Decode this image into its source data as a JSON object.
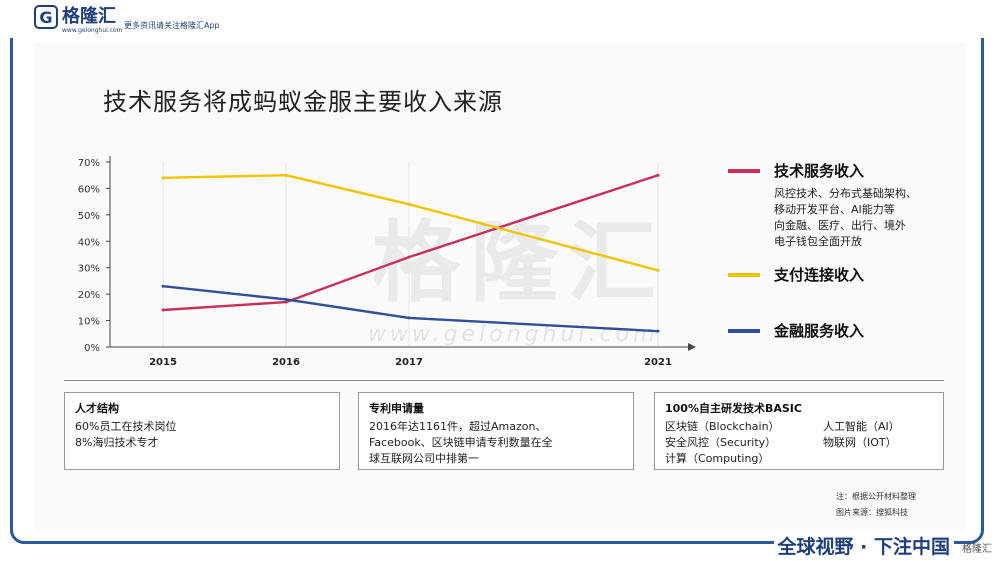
{
  "brand": {
    "mark": "G",
    "name": "格隆汇",
    "url": "www.gelonghui.com",
    "slogan": "更多资讯请关注格隆汇App"
  },
  "slide": {
    "title": "技术服务将成蚂蚁金服主要收入来源",
    "footer": "全球视野 · 下注中国",
    "footer_logo": "格隆汇",
    "notes": [
      "注：根据公开材料整理",
      "图片来源：搜狐科技"
    ],
    "watermark": "格隆汇",
    "watermark_url": "www.gelonghui.com"
  },
  "chart_data": {
    "type": "line",
    "categories": [
      "2015",
      "2016",
      "2017",
      "2021"
    ],
    "y_ticks": [
      "0%",
      "10%",
      "20%",
      "30%",
      "40%",
      "50%",
      "60%",
      "70%"
    ],
    "ylim": [
      0,
      70
    ],
    "series": [
      {
        "name": "技术服务收入",
        "color": "#c8305a",
        "values": [
          14,
          17,
          34,
          65
        ],
        "desc": [
          "风控技术、分布式基础架构、",
          "移动开发平台、AI能力等",
          "向金融、医疗、出行、境外",
          "电子钱包全面开放"
        ]
      },
      {
        "name": "支付连接收入",
        "color": "#f2c400",
        "values": [
          64,
          65,
          54,
          29
        ],
        "desc": []
      },
      {
        "name": "金融服务收入",
        "color": "#2f4f9a",
        "values": [
          23,
          18,
          11,
          6
        ],
        "desc": []
      }
    ]
  },
  "boxes": [
    {
      "title": "人才结构",
      "lines": [
        "60%员工在技术岗位",
        "8%海归技术专才"
      ]
    },
    {
      "title": "专利申请量",
      "lines": [
        "2016年达1161件，超过Amazon、",
        "Facebook、区块链申请专利数量在全",
        "球互联网公司中排第一"
      ]
    },
    {
      "title": "100%自主研发技术BASIC",
      "left": [
        "区块链（Blockchain）",
        "安全风控（Security）",
        "计算（Computing）"
      ],
      "right": [
        "人工智能（AI）",
        "物联网（IOT）"
      ]
    }
  ]
}
